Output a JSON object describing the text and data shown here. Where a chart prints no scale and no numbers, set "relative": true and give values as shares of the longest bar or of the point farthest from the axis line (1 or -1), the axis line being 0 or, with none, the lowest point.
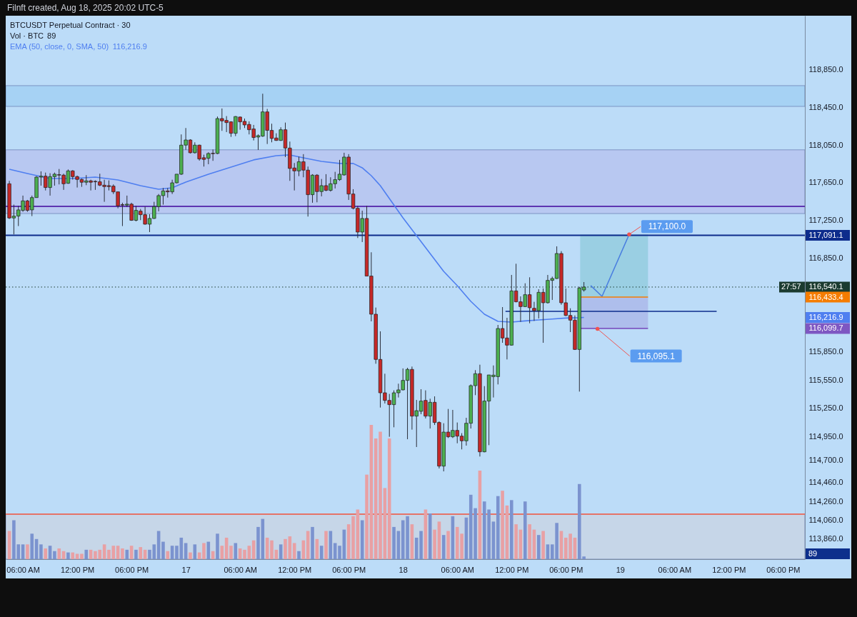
{
  "chart_data": [
    {
      "type": "candlestick",
      "title": "BTCUSDT Perpetual Contract · 30",
      "legend": "top left",
      "tick_labels": "y",
      "annotations": [
        "Filnft created, Aug 18, 2025 20:02 UTC-5",
        "116,216.9",
        "27:57",
        {
          "text": "117,100.0",
          "x": "2025-08-19T01:00",
          "y": 117100
        },
        {
          "text": "116,095.1",
          "x": "2025-08-18T21:30",
          "y": 116095.1
        }
      ],
      "xlim": [
        "2025-08-16T04:06",
        "2025-08-19T20:25"
      ],
      "ylim": [
        113645,
        119427
      ],
      "yticks": [
        {
          "value": 118850,
          "label": "118,850.0"
        },
        {
          "value": 118450,
          "label": "118,450.0"
        },
        {
          "value": 118050,
          "label": "118,050.0"
        },
        {
          "value": 117650,
          "label": "117,650.0"
        },
        {
          "value": 117250,
          "label": "117,250.0"
        },
        {
          "value": 117091.1,
          "label": "117,091.1"
        },
        {
          "value": 116850,
          "label": "116,850.0"
        },
        {
          "value": 116540.1,
          "label": "116,540.1"
        },
        {
          "value": 116433.4,
          "label": "116,433.4"
        },
        {
          "value": 116216.9,
          "label": "116,216.9"
        },
        {
          "value": 116099.7,
          "label": "116,099.7"
        },
        {
          "value": 115850,
          "label": "115,850.0"
        },
        {
          "value": 115550,
          "label": "115,550.0"
        },
        {
          "value": 115250,
          "label": "115,250.0"
        },
        {
          "value": 114950,
          "label": "114,950.0"
        },
        {
          "value": 114700,
          "label": "114,700.0"
        },
        {
          "value": 114460,
          "label": "114,460.0"
        },
        {
          "value": 114260,
          "label": "114,260.0"
        },
        {
          "value": 114060,
          "label": "114,060.0"
        },
        {
          "value": 113860,
          "label": "113,860.0"
        }
      ],
      "bands": [
        {
          "axis": "y",
          "from": 118462,
          "to": 118683,
          "color": "#a6d2f4"
        },
        {
          "axis": "y",
          "from": 117322,
          "to": 118000,
          "color": "#b8c8f1"
        },
        {
          "axis": "y",
          "from": 113645,
          "to": 114124,
          "color": "#c6d6e8"
        }
      ],
      "ref_lines": [
        {
          "axis": "y",
          "value": 117091.1,
          "color": "#0d2c8c"
        },
        {
          "axis": "y",
          "value": 116540.1,
          "color": "#1b3b30",
          "line_style": "dotted"
        },
        {
          "axis": "y",
          "value": 117399,
          "color": "#5e35b1"
        },
        {
          "axis": "y",
          "value": 114124,
          "color": "#e57368"
        }
      ],
      "x": [
        "2025-08-16T04:30",
        "2025-08-16T05:00",
        "2025-08-16T05:30",
        "2025-08-16T06:00",
        "2025-08-16T06:30",
        "2025-08-16T07:00",
        "2025-08-16T07:30",
        "2025-08-16T08:00",
        "2025-08-16T08:30",
        "2025-08-16T09:00",
        "2025-08-16T09:30",
        "2025-08-16T10:00",
        "2025-08-16T10:30",
        "2025-08-16T11:00",
        "2025-08-16T11:30",
        "2025-08-16T12:00",
        "2025-08-16T12:30",
        "2025-08-16T13:00",
        "2025-08-16T13:30",
        "2025-08-16T14:00",
        "2025-08-16T14:30",
        "2025-08-16T15:00",
        "2025-08-16T15:30",
        "2025-08-16T16:00",
        "2025-08-16T16:30",
        "2025-08-16T17:00",
        "2025-08-16T17:30",
        "2025-08-16T18:00",
        "2025-08-16T18:30",
        "2025-08-16T19:00",
        "2025-08-16T19:30",
        "2025-08-16T20:00",
        "2025-08-16T20:30",
        "2025-08-16T21:00",
        "2025-08-16T21:30",
        "2025-08-16T22:00",
        "2025-08-16T22:30",
        "2025-08-16T23:00",
        "2025-08-16T23:30",
        "2025-08-17T00:00",
        "2025-08-17T00:30",
        "2025-08-17T01:00",
        "2025-08-17T01:30",
        "2025-08-17T02:00",
        "2025-08-17T02:30",
        "2025-08-17T03:00",
        "2025-08-17T03:30",
        "2025-08-17T04:00",
        "2025-08-17T04:30",
        "2025-08-17T05:00",
        "2025-08-17T05:30",
        "2025-08-17T06:00",
        "2025-08-17T06:30",
        "2025-08-17T07:00",
        "2025-08-17T07:30",
        "2025-08-17T08:00",
        "2025-08-17T08:30",
        "2025-08-17T09:00",
        "2025-08-17T09:30",
        "2025-08-17T10:00",
        "2025-08-17T10:30",
        "2025-08-17T11:00",
        "2025-08-17T11:30",
        "2025-08-17T12:00",
        "2025-08-17T12:30",
        "2025-08-17T13:00",
        "2025-08-17T13:30",
        "2025-08-17T14:00",
        "2025-08-17T14:30",
        "2025-08-17T15:00",
        "2025-08-17T15:30",
        "2025-08-17T16:00",
        "2025-08-17T16:30",
        "2025-08-17T17:00",
        "2025-08-17T17:30",
        "2025-08-17T18:00",
        "2025-08-17T18:30",
        "2025-08-17T19:00",
        "2025-08-17T19:30",
        "2025-08-17T20:00",
        "2025-08-17T20:30",
        "2025-08-17T21:00",
        "2025-08-17T21:30",
        "2025-08-17T22:00",
        "2025-08-17T22:30",
        "2025-08-17T23:00",
        "2025-08-17T23:30",
        "2025-08-18T00:00",
        "2025-08-18T00:30",
        "2025-08-18T01:00",
        "2025-08-18T01:30",
        "2025-08-18T02:00",
        "2025-08-18T02:30",
        "2025-08-18T03:00",
        "2025-08-18T03:30",
        "2025-08-18T04:00",
        "2025-08-18T04:30",
        "2025-08-18T05:00",
        "2025-08-18T05:30",
        "2025-08-18T06:00",
        "2025-08-18T06:30",
        "2025-08-18T07:00",
        "2025-08-18T07:30",
        "2025-08-18T08:00",
        "2025-08-18T08:30",
        "2025-08-18T09:00",
        "2025-08-18T09:30",
        "2025-08-18T10:00",
        "2025-08-18T10:30",
        "2025-08-18T11:00",
        "2025-08-18T11:30",
        "2025-08-18T12:00",
        "2025-08-18T12:30",
        "2025-08-18T13:00",
        "2025-08-18T13:30",
        "2025-08-18T14:00",
        "2025-08-18T14:30",
        "2025-08-18T15:00",
        "2025-08-18T15:30",
        "2025-08-18T16:00",
        "2025-08-18T16:30",
        "2025-08-18T17:00",
        "2025-08-18T17:30",
        "2025-08-18T18:00",
        "2025-08-18T18:30",
        "2025-08-18T19:00",
        "2025-08-18T19:30",
        "2025-08-18T20:00"
      ],
      "ohlc": [
        [
          117639,
          117670,
          117265,
          117275
        ],
        [
          117275,
          117417,
          117100,
          117295
        ],
        [
          117295,
          117404,
          117189,
          117361
        ],
        [
          117356,
          117513,
          117341,
          117457
        ],
        [
          117457,
          117467,
          117341,
          117356
        ],
        [
          117361,
          117513,
          117295,
          117492
        ],
        [
          117492,
          117720,
          117492,
          117710
        ],
        [
          117710,
          117771,
          117619,
          117720
        ],
        [
          117720,
          117758,
          117568,
          117599
        ],
        [
          117599,
          117751,
          117513,
          117715
        ],
        [
          117715,
          117758,
          117619,
          117741
        ],
        [
          117736,
          117796,
          117632,
          117731
        ],
        [
          117731,
          117746,
          117574,
          117639
        ],
        [
          117644,
          117791,
          117639,
          117776
        ],
        [
          117776,
          117784,
          117683,
          117715
        ],
        [
          117715,
          117726,
          117599,
          117685
        ],
        [
          117685,
          117695,
          117606,
          117655
        ],
        [
          117655,
          117731,
          117624,
          117670
        ],
        [
          117670,
          117682,
          117568,
          117655
        ],
        [
          117665,
          117675,
          117574,
          117660
        ],
        [
          117660,
          117746,
          117614,
          117624
        ],
        [
          117624,
          117682,
          117447,
          117609
        ],
        [
          117619,
          117675,
          117568,
          117609
        ],
        [
          117614,
          117632,
          117530,
          117553
        ],
        [
          117553,
          117553,
          117378,
          117404
        ],
        [
          117417,
          117437,
          117189,
          117412
        ],
        [
          117412,
          117513,
          117391,
          117422
        ],
        [
          117422,
          117437,
          117245,
          117250
        ],
        [
          117250,
          117404,
          117239,
          117356
        ],
        [
          117348,
          117371,
          117252,
          117310
        ],
        [
          117310,
          117396,
          117204,
          117209
        ],
        [
          117209,
          117315,
          117125,
          117270
        ],
        [
          117270,
          117447,
          117265,
          117396
        ],
        [
          117396,
          117530,
          117346,
          117513
        ],
        [
          117513,
          117594,
          117417,
          117563
        ],
        [
          117563,
          117594,
          117492,
          117553
        ],
        [
          117553,
          117682,
          117530,
          117649
        ],
        [
          117649,
          117741,
          117644,
          117741
        ],
        [
          117741,
          118164,
          117733,
          118050
        ],
        [
          118050,
          118232,
          118000,
          118105
        ],
        [
          118105,
          118113,
          117961,
          117969
        ],
        [
          117969,
          118080,
          117961,
          118050
        ],
        [
          118050,
          118055,
          117885,
          117903
        ],
        [
          117916,
          117948,
          117822,
          117898
        ],
        [
          117910,
          117974,
          117847,
          117961
        ],
        [
          117964,
          118004,
          117883,
          117959
        ],
        [
          117961,
          118354,
          117954,
          118333
        ],
        [
          118333,
          118440,
          118202,
          118308
        ],
        [
          118313,
          118359,
          118189,
          118290
        ],
        [
          118298,
          118303,
          118138,
          118176
        ],
        [
          118176,
          118359,
          118146,
          118354
        ],
        [
          118349,
          118354,
          118214,
          118298
        ],
        [
          118303,
          118333,
          118232,
          118265
        ],
        [
          118270,
          118303,
          118164,
          118214
        ],
        [
          118222,
          118265,
          118100,
          118131
        ],
        [
          118136,
          118164,
          117999,
          118151
        ],
        [
          118146,
          118597,
          118138,
          118404
        ],
        [
          118404,
          118435,
          118062,
          118207
        ],
        [
          118207,
          118278,
          118080,
          118121
        ],
        [
          118126,
          118176,
          118095,
          118100
        ],
        [
          118100,
          118240,
          118095,
          118214
        ],
        [
          118214,
          118290,
          117923,
          118019
        ],
        [
          118019,
          118088,
          117670,
          117802
        ],
        [
          117807,
          117860,
          117568,
          117776
        ],
        [
          117776,
          117928,
          117720,
          117873
        ],
        [
          117873,
          117954,
          117708,
          117784
        ],
        [
          117784,
          117822,
          117290,
          117523
        ],
        [
          117523,
          117741,
          117437,
          117731
        ],
        [
          117731,
          117741,
          117442,
          117556
        ],
        [
          117556,
          117690,
          117505,
          117619
        ],
        [
          117619,
          117741,
          117560,
          117569
        ],
        [
          117569,
          117708,
          117556,
          117639
        ],
        [
          117639,
          117766,
          117589,
          117683
        ],
        [
          117683,
          117893,
          117670,
          117741
        ],
        [
          117733,
          117969,
          117725,
          117923
        ],
        [
          117923,
          117954,
          117467,
          117530
        ],
        [
          117530,
          117581,
          117366,
          117379
        ],
        [
          117378,
          117404,
          117062,
          117125
        ],
        [
          117125,
          117353,
          117019,
          117270
        ],
        [
          117270,
          117404,
          116657,
          116657
        ],
        [
          116657,
          116910,
          116175,
          116251
        ],
        [
          116251,
          116322,
          115724,
          115770
        ],
        [
          115770,
          116069,
          115258,
          115415
        ],
        [
          115415,
          115618,
          115301,
          115334
        ],
        [
          115334,
          115403,
          114947,
          115289
        ],
        [
          115289,
          115441,
          115048,
          115415
        ],
        [
          115415,
          115512,
          115365,
          115446
        ],
        [
          115446,
          115674,
          115441,
          115547
        ],
        [
          115547,
          115681,
          114921,
          115664
        ],
        [
          115664,
          115694,
          115023,
          115167
        ],
        [
          115167,
          115339,
          114838,
          115225
        ],
        [
          115218,
          115453,
          115187,
          115327
        ],
        [
          115334,
          115441,
          115142,
          115167
        ],
        [
          115167,
          115352,
          115035,
          115314
        ],
        [
          115314,
          115377,
          115073,
          115099
        ],
        [
          115099,
          115111,
          114610,
          114635
        ],
        [
          114635,
          115091,
          114579,
          114997
        ],
        [
          114997,
          115243,
          114934,
          114947
        ],
        [
          114947,
          115233,
          114934,
          115015
        ],
        [
          115015,
          115099,
          114878,
          114954
        ],
        [
          114954,
          114985,
          114813,
          114904
        ],
        [
          114904,
          115149,
          114853,
          115091
        ],
        [
          115091,
          115504,
          115035,
          115491
        ],
        [
          115491,
          115656,
          115390,
          115618
        ],
        [
          115618,
          115714,
          114737,
          114787
        ],
        [
          114787,
          115486,
          114782,
          115327
        ],
        [
          115327,
          115605,
          114858,
          115605
        ],
        [
          115587,
          115706,
          115365,
          115603
        ],
        [
          115587,
          116137,
          115504,
          116099
        ],
        [
          116099,
          116327,
          115947,
          115998
        ],
        [
          115998,
          116213,
          115770,
          115922
        ],
        [
          115922,
          116669,
          115917,
          116499
        ],
        [
          116499,
          116788,
          116378,
          116383
        ],
        [
          116383,
          116441,
          116170,
          116332
        ],
        [
          116332,
          116580,
          116327,
          116459
        ],
        [
          116459,
          116644,
          116155,
          116320
        ],
        [
          116314,
          116383,
          116180,
          116289
        ],
        [
          116289,
          116517,
          116206,
          116484
        ],
        [
          116484,
          116525,
          115947,
          116373
        ],
        [
          116373,
          116669,
          116365,
          116611
        ],
        [
          116611,
          116651,
          116403,
          116631
        ],
        [
          116631,
          116973,
          116626,
          116897
        ],
        [
          116897,
          116922,
          116352,
          116373
        ],
        [
          116373,
          116525,
          116231,
          116238
        ],
        [
          116238,
          116314,
          116061,
          116188
        ],
        [
          116188,
          116238,
          115871,
          115876
        ],
        [
          115876,
          116542,
          115428,
          116530
        ],
        [
          116509,
          116593,
          116492,
          116540.1
        ]
      ],
      "colors": [
        "#c62828",
        "#4caf50",
        "#4caf50",
        "#4caf50",
        "#c62828",
        "#4caf50",
        "#4caf50",
        "#4caf50",
        "#c62828",
        "#4caf50",
        "#4caf50",
        "#c62828",
        "#c62828",
        "#4caf50",
        "#c62828",
        "#c62828",
        "#c62828",
        "#4caf50",
        "#c62828",
        "#c62828",
        "#c62828",
        "#c62828",
        "#c62828",
        "#c62828",
        "#c62828",
        "#c62828",
        "#4caf50",
        "#c62828",
        "#4caf50",
        "#c62828",
        "#c62828",
        "#4caf50",
        "#4caf50",
        "#4caf50",
        "#4caf50",
        "#c62828",
        "#4caf50",
        "#4caf50",
        "#4caf50",
        "#4caf50",
        "#c62828",
        "#4caf50",
        "#c62828",
        "#c62828",
        "#4caf50",
        "#c62828",
        "#4caf50",
        "#c62828",
        "#c62828",
        "#c62828",
        "#4caf50",
        "#c62828",
        "#c62828",
        "#c62828",
        "#c62828",
        "#4caf50",
        "#4caf50",
        "#c62828",
        "#c62828",
        "#c62828",
        "#4caf50",
        "#c62828",
        "#c62828",
        "#c62828",
        "#4caf50",
        "#c62828",
        "#c62828",
        "#4caf50",
        "#c62828",
        "#4caf50",
        "#c62828",
        "#4caf50",
        "#4caf50",
        "#4caf50",
        "#4caf50",
        "#c62828",
        "#c62828",
        "#c62828",
        "#4caf50",
        "#c62828",
        "#c62828",
        "#c62828",
        "#c62828",
        "#c62828",
        "#c62828",
        "#4caf50",
        "#4caf50",
        "#4caf50",
        "#4caf50",
        "#c62828",
        "#4caf50",
        "#4caf50",
        "#c62828",
        "#4caf50",
        "#c62828",
        "#c62828",
        "#4caf50",
        "#c62828",
        "#4caf50",
        "#c62828",
        "#c62828",
        "#4caf50",
        "#4caf50",
        "#4caf50",
        "#c62828",
        "#4caf50",
        "#4caf50",
        "#4caf50",
        "#4caf50",
        "#c62828",
        "#c62828",
        "#4caf50",
        "#c62828",
        "#c62828",
        "#4caf50",
        "#c62828",
        "#c62828",
        "#4caf50",
        "#c62828",
        "#4caf50",
        "#4caf50",
        "#4caf50",
        "#c62828",
        "#c62828",
        "#c62828",
        "#c62828",
        "#4caf50",
        "#4caf50"
      ],
      "series": [
        {
          "name": "EMA (50, close, 0, SMA, 50)",
          "type": "line",
          "color": "#4f7ff0",
          "x": [
            "2025-08-16T04:30",
            "2025-08-16T06:30",
            "2025-08-16T09:00",
            "2025-08-16T11:30",
            "2025-08-16T14:00",
            "2025-08-16T16:30",
            "2025-08-16T19:00",
            "2025-08-16T21:00",
            "2025-08-16T22:30",
            "2025-08-17T00:00",
            "2025-08-17T02:30",
            "2025-08-17T05:00",
            "2025-08-17T07:30",
            "2025-08-17T10:00",
            "2025-08-17T11:30",
            "2025-08-17T13:00",
            "2025-08-17T15:00",
            "2025-08-17T17:00",
            "2025-08-17T18:30",
            "2025-08-17T19:30",
            "2025-08-17T20:30",
            "2025-08-17T21:30",
            "2025-08-17T22:30",
            "2025-08-18T00:00",
            "2025-08-18T01:30",
            "2025-08-18T03:00",
            "2025-08-18T04:30",
            "2025-08-18T06:00",
            "2025-08-18T07:30",
            "2025-08-18T09:00",
            "2025-08-18T10:30",
            "2025-08-18T12:00",
            "2025-08-18T13:30",
            "2025-08-18T15:00",
            "2025-08-18T16:30",
            "2025-08-18T18:00",
            "2025-08-18T19:30",
            "2025-08-18T20:00"
          ],
          "values": [
            117794,
            117748,
            117695,
            117695,
            117710,
            117680,
            117619,
            117581,
            117596,
            117657,
            117741,
            117817,
            117893,
            117938,
            117946,
            117915,
            117877,
            117855,
            117855,
            117809,
            117725,
            117619,
            117482,
            117277,
            117087,
            116897,
            116707,
            116555,
            116388,
            116251,
            116175,
            116168,
            116180,
            116190,
            116200,
            116210,
            116214,
            116216.9
          ]
        },
        {
          "type": "line",
          "color": "#0d2c8c",
          "x": [
            "2025-08-18T11:20",
            "2025-08-19T10:40"
          ],
          "values": [
            116282,
            116282
          ]
        },
        {
          "type": "line",
          "color": "#4a7fe0",
          "x": [
            "2025-08-18T20:45",
            "2025-08-18T22:00",
            "2025-08-19T01:00"
          ],
          "values": [
            116556,
            116441,
            117100
          ]
        },
        {
          "type": "line",
          "color": "#f57c00",
          "x": [
            "2025-08-18T19:35",
            "2025-08-19T03:05"
          ],
          "values": [
            116433.4,
            116433.4
          ]
        },
        {
          "type": "line",
          "color": "#7e57c2",
          "x": [
            "2025-08-18T19:35",
            "2025-08-19T03:05"
          ],
          "values": [
            116099.7,
            116099.7
          ]
        }
      ]
    },
    {
      "type": "bar",
      "relative": true,
      "title": "Vol · BTC",
      "annotations": [
        "89",
        "89"
      ],
      "xlim": [
        "2025-08-16T04:06",
        "2025-08-19T20:25"
      ],
      "xticks": [
        {
          "value": "2025-08-16T06:00",
          "label": "06:00 AM"
        },
        {
          "value": "2025-08-16T12:00",
          "label": "12:00 PM"
        },
        {
          "value": "2025-08-16T18:00",
          "label": "06:00 PM"
        },
        {
          "value": "2025-08-17T00:00",
          "label": "17"
        },
        {
          "value": "2025-08-17T06:00",
          "label": "06:00 AM"
        },
        {
          "value": "2025-08-17T12:00",
          "label": "12:00 PM"
        },
        {
          "value": "2025-08-17T18:00",
          "label": "06:00 PM"
        },
        {
          "value": "2025-08-18T00:00",
          "label": "18"
        },
        {
          "value": "2025-08-18T06:00",
          "label": "06:00 AM"
        },
        {
          "value": "2025-08-18T12:00",
          "label": "12:00 PM"
        },
        {
          "value": "2025-08-18T18:00",
          "label": "06:00 PM"
        },
        {
          "value": "2025-08-19T00:00",
          "label": "19"
        },
        {
          "value": "2025-08-19T06:00",
          "label": "06:00 AM"
        },
        {
          "value": "2025-08-19T12:00",
          "label": "12:00 PM"
        },
        {
          "value": "2025-08-19T18:00",
          "label": "06:00 PM"
        }
      ],
      "x": [
        "2025-08-16T04:30",
        "2025-08-16T05:00",
        "2025-08-16T05:30",
        "2025-08-16T06:00",
        "2025-08-16T06:30",
        "2025-08-16T07:00",
        "2025-08-16T07:30",
        "2025-08-16T08:00",
        "2025-08-16T08:30",
        "2025-08-16T09:00",
        "2025-08-16T09:30",
        "2025-08-16T10:00",
        "2025-08-16T10:30",
        "2025-08-16T11:00",
        "2025-08-16T11:30",
        "2025-08-16T12:00",
        "2025-08-16T12:30",
        "2025-08-16T13:00",
        "2025-08-16T13:30",
        "2025-08-16T14:00",
        "2025-08-16T14:30",
        "2025-08-16T15:00",
        "2025-08-16T15:30",
        "2025-08-16T16:00",
        "2025-08-16T16:30",
        "2025-08-16T17:00",
        "2025-08-16T17:30",
        "2025-08-16T18:00",
        "2025-08-16T18:30",
        "2025-08-16T19:00",
        "2025-08-16T19:30",
        "2025-08-16T20:00",
        "2025-08-16T20:30",
        "2025-08-16T21:00",
        "2025-08-16T21:30",
        "2025-08-16T22:00",
        "2025-08-16T22:30",
        "2025-08-16T23:00",
        "2025-08-16T23:30",
        "2025-08-17T00:00",
        "2025-08-17T00:30",
        "2025-08-17T01:00",
        "2025-08-17T01:30",
        "2025-08-17T02:00",
        "2025-08-17T02:30",
        "2025-08-17T03:00",
        "2025-08-17T03:30",
        "2025-08-17T04:00",
        "2025-08-17T04:30",
        "2025-08-17T05:00",
        "2025-08-17T05:30",
        "2025-08-17T06:00",
        "2025-08-17T06:30",
        "2025-08-17T07:00",
        "2025-08-17T07:30",
        "2025-08-17T08:00",
        "2025-08-17T08:30",
        "2025-08-17T09:00",
        "2025-08-17T09:30",
        "2025-08-17T10:00",
        "2025-08-17T10:30",
        "2025-08-17T11:00",
        "2025-08-17T11:30",
        "2025-08-17T12:00",
        "2025-08-17T12:30",
        "2025-08-17T13:00",
        "2025-08-17T13:30",
        "2025-08-17T14:00",
        "2025-08-17T14:30",
        "2025-08-17T15:00",
        "2025-08-17T15:30",
        "2025-08-17T16:00",
        "2025-08-17T16:30",
        "2025-08-17T17:00",
        "2025-08-17T17:30",
        "2025-08-17T18:00",
        "2025-08-17T18:30",
        "2025-08-17T19:00",
        "2025-08-17T19:30",
        "2025-08-17T20:00",
        "2025-08-17T20:30",
        "2025-08-17T21:00",
        "2025-08-17T21:30",
        "2025-08-17T22:00",
        "2025-08-17T22:30",
        "2025-08-17T23:00",
        "2025-08-17T23:30",
        "2025-08-18T00:00",
        "2025-08-18T00:30",
        "2025-08-18T01:00",
        "2025-08-18T01:30",
        "2025-08-18T02:00",
        "2025-08-18T02:30",
        "2025-08-18T03:00",
        "2025-08-18T03:30",
        "2025-08-18T04:00",
        "2025-08-18T04:30",
        "2025-08-18T05:00",
        "2025-08-18T05:30",
        "2025-08-18T06:00",
        "2025-08-18T06:30",
        "2025-08-18T07:00",
        "2025-08-18T07:30",
        "2025-08-18T08:00",
        "2025-08-18T08:30",
        "2025-08-18T09:00",
        "2025-08-18T09:30",
        "2025-08-18T10:00",
        "2025-08-18T10:30",
        "2025-08-18T11:00",
        "2025-08-18T11:30",
        "2025-08-18T12:00",
        "2025-08-18T12:30",
        "2025-08-18T13:00",
        "2025-08-18T13:30",
        "2025-08-18T14:00",
        "2025-08-18T14:30",
        "2025-08-18T15:00",
        "2025-08-18T15:30",
        "2025-08-18T16:00",
        "2025-08-18T16:30",
        "2025-08-18T17:00",
        "2025-08-18T17:30",
        "2025-08-18T18:00",
        "2025-08-18T18:30",
        "2025-08-18T19:00",
        "2025-08-18T19:30",
        "2025-08-18T20:00"
      ],
      "colors": [
        "#e8a0a4",
        "#7b93cf",
        "#7b93cf",
        "#7b93cf",
        "#e8a0a4",
        "#7b93cf",
        "#7b93cf",
        "#7b93cf",
        "#e8a0a4",
        "#7b93cf",
        "#7b93cf",
        "#e8a0a4",
        "#e8a0a4",
        "#7b93cf",
        "#e8a0a4",
        "#e8a0a4",
        "#e8a0a4",
        "#7b93cf",
        "#e8a0a4",
        "#e8a0a4",
        "#e8a0a4",
        "#e8a0a4",
        "#e8a0a4",
        "#e8a0a4",
        "#e8a0a4",
        "#e8a0a4",
        "#7b93cf",
        "#e8a0a4",
        "#7b93cf",
        "#e8a0a4",
        "#e8a0a4",
        "#7b93cf",
        "#7b93cf",
        "#7b93cf",
        "#7b93cf",
        "#e8a0a4",
        "#7b93cf",
        "#7b93cf",
        "#7b93cf",
        "#7b93cf",
        "#e8a0a4",
        "#7b93cf",
        "#e8a0a4",
        "#e8a0a4",
        "#7b93cf",
        "#e8a0a4",
        "#7b93cf",
        "#e8a0a4",
        "#e8a0a4",
        "#e8a0a4",
        "#7b93cf",
        "#e8a0a4",
        "#e8a0a4",
        "#e8a0a4",
        "#e8a0a4",
        "#7b93cf",
        "#7b93cf",
        "#e8a0a4",
        "#e8a0a4",
        "#e8a0a4",
        "#7b93cf",
        "#e8a0a4",
        "#e8a0a4",
        "#e8a0a4",
        "#7b93cf",
        "#e8a0a4",
        "#e8a0a4",
        "#7b93cf",
        "#e8a0a4",
        "#7b93cf",
        "#e8a0a4",
        "#7b93cf",
        "#7b93cf",
        "#7b93cf",
        "#7b93cf",
        "#e8a0a4",
        "#e8a0a4",
        "#e8a0a4",
        "#7b93cf",
        "#e8a0a4",
        "#e8a0a4",
        "#e8a0a4",
        "#e8a0a4",
        "#e8a0a4",
        "#e8a0a4",
        "#7b93cf",
        "#7b93cf",
        "#7b93cf",
        "#7b93cf",
        "#e8a0a4",
        "#7b93cf",
        "#7b93cf",
        "#e8a0a4",
        "#7b93cf",
        "#e8a0a4",
        "#e8a0a4",
        "#7b93cf",
        "#e8a0a4",
        "#7b93cf",
        "#e8a0a4",
        "#e8a0a4",
        "#7b93cf",
        "#7b93cf",
        "#7b93cf",
        "#e8a0a4",
        "#7b93cf",
        "#7b93cf",
        "#7b93cf",
        "#7b93cf",
        "#e8a0a4",
        "#e8a0a4",
        "#7b93cf",
        "#e8a0a4",
        "#e8a0a4",
        "#7b93cf",
        "#e8a0a4",
        "#e8a0a4",
        "#7b93cf",
        "#e8a0a4",
        "#7b93cf",
        "#7b93cf",
        "#7b93cf",
        "#e8a0a4",
        "#e8a0a4",
        "#e8a0a4",
        "#e8a0a4",
        "#7b93cf",
        "#7b93cf"
      ],
      "values": [
        0.21,
        0.29,
        0.11,
        0.11,
        0.11,
        0.19,
        0.15,
        0.11,
        0.08,
        0.1,
        0.06,
        0.08,
        0.06,
        0.05,
        0.05,
        0.04,
        0.04,
        0.07,
        0.07,
        0.06,
        0.07,
        0.11,
        0.07,
        0.1,
        0.1,
        0.08,
        0.07,
        0.1,
        0.07,
        0.09,
        0.07,
        0.07,
        0.11,
        0.21,
        0.13,
        0.06,
        0.1,
        0.1,
        0.16,
        0.12,
        0.05,
        0.11,
        0.05,
        0.12,
        0.13,
        0.06,
        0.19,
        0.1,
        0.16,
        0.1,
        0.12,
        0.08,
        0.07,
        0.1,
        0.14,
        0.24,
        0.3,
        0.16,
        0.14,
        0.07,
        0.11,
        0.15,
        0.17,
        0.12,
        0.06,
        0.14,
        0.21,
        0.24,
        0.15,
        0.1,
        0.21,
        0.21,
        0.12,
        0.1,
        0.22,
        0.26,
        0.32,
        0.37,
        0.29,
        0.63,
        1,
        0.9,
        0.95,
        0.53,
        0.9,
        0.24,
        0.21,
        0.29,
        0.32,
        0.26,
        0.16,
        0.21,
        0.37,
        0.34,
        0.22,
        0.28,
        0.18,
        0.21,
        0.32,
        0.24,
        0.19,
        0.31,
        0.48,
        0.38,
        0.66,
        0.43,
        0.37,
        0.28,
        0.47,
        0.51,
        0.4,
        0.44,
        0.26,
        0.22,
        0.43,
        0.26,
        0.22,
        0.18,
        0.21,
        0.11,
        0.11,
        0.27,
        0.21,
        0.16,
        0.19,
        0.16,
        0.56,
        0.02
      ]
    }
  ]
}
